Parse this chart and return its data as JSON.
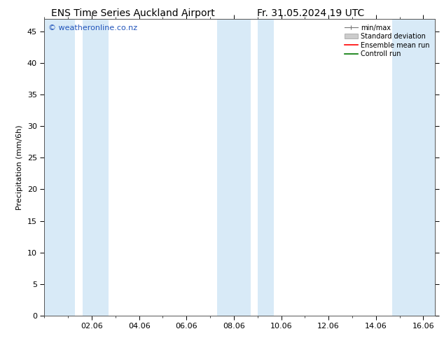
{
  "title_left": "ENS Time Series Auckland Airport",
  "title_right": "Fr. 31.05.2024 19 UTC",
  "ylabel": "Precipitation (mm/6h)",
  "watermark": "© weatheronline.co.nz",
  "ylim": [
    0,
    47
  ],
  "yticks": [
    0,
    5,
    10,
    15,
    20,
    25,
    30,
    35,
    40,
    45
  ],
  "xtick_labels": [
    "02.06",
    "04.06",
    "06.06",
    "08.06",
    "10.06",
    "12.06",
    "14.06",
    "16.06"
  ],
  "xtick_positions": [
    2,
    4,
    6,
    8,
    10,
    12,
    14,
    16
  ],
  "xlim": [
    0,
    16.5
  ],
  "shaded_bands": [
    [
      0.0,
      1.3
    ],
    [
      1.6,
      2.7
    ],
    [
      7.3,
      8.7
    ],
    [
      9.0,
      9.7
    ],
    [
      14.7,
      16.5
    ]
  ],
  "band_color": "#d8eaf7",
  "bg_color": "#ffffff",
  "spine_color": "#555555",
  "legend_entries": [
    {
      "label": "min/max",
      "color": "#888888",
      "type": "errorbar"
    },
    {
      "label": "Standard deviation",
      "color": "#cccccc",
      "type": "fill"
    },
    {
      "label": "Ensemble mean run",
      "color": "#ff0000",
      "type": "line"
    },
    {
      "label": "Controll run",
      "color": "#007700",
      "type": "line"
    }
  ],
  "title_fontsize": 10,
  "axis_fontsize": 8,
  "tick_fontsize": 8,
  "watermark_fontsize": 8,
  "legend_fontsize": 7
}
